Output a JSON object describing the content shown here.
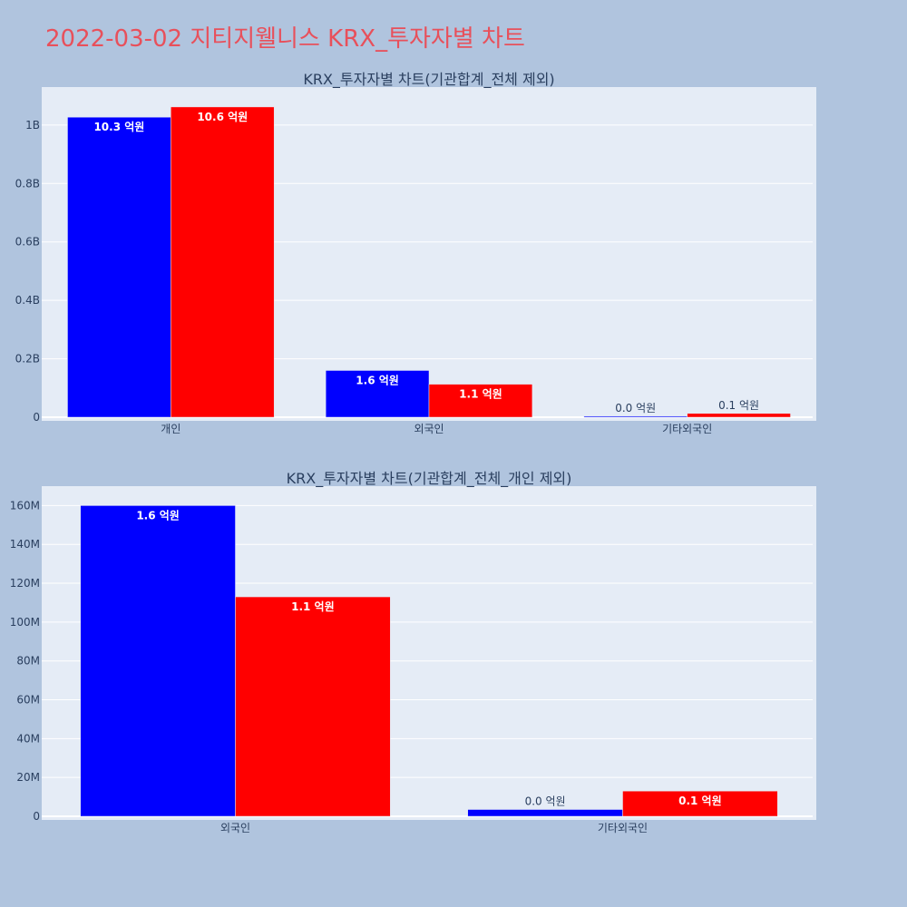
{
  "page_title": "2022-03-02 지티지웰니스 KRX_투자자별 차트",
  "chart_data": [
    {
      "type": "bar",
      "title": "KRX_투자자별 차트(기관합계_전체 제외)",
      "categories": [
        "개인",
        "외국인",
        "기타외국인"
      ],
      "series": [
        {
          "color": "#0000ff",
          "values": [
            1027000000,
            160000000,
            3500000
          ],
          "labels": [
            "10.3 억원",
            "1.6 억원",
            "0.0 억원"
          ]
        },
        {
          "color": "#ff0000",
          "values": [
            1062000000,
            113000000,
            13000000
          ],
          "labels": [
            "10.6 억원",
            "1.1 억원",
            "0.1 억원"
          ]
        }
      ],
      "ylim": [
        0,
        1130000000
      ],
      "yticks": [
        0,
        200000000,
        400000000,
        600000000,
        800000000,
        1000000000
      ],
      "yticklabels": [
        "0",
        "0.2B",
        "0.4B",
        "0.6B",
        "0.8B",
        "1B"
      ]
    },
    {
      "type": "bar",
      "title": "KRX_투자자별 차트(기관합계_전체_개인 제외)",
      "categories": [
        "외국인",
        "기타외국인"
      ],
      "series": [
        {
          "color": "#0000ff",
          "values": [
            160000000,
            3500000
          ],
          "labels": [
            "1.6 억원",
            "0.0 억원"
          ]
        },
        {
          "color": "#ff0000",
          "values": [
            113000000,
            13000000
          ],
          "labels": [
            "1.1 억원",
            "0.1 억원"
          ]
        }
      ],
      "ylim": [
        0,
        170000000
      ],
      "yticks": [
        0,
        20000000,
        40000000,
        60000000,
        80000000,
        100000000,
        120000000,
        140000000,
        160000000
      ],
      "yticklabels": [
        "0",
        "20M",
        "40M",
        "60M",
        "80M",
        "100M",
        "120M",
        "140M",
        "160M"
      ]
    }
  ],
  "colors": {
    "background": "#b0c4de",
    "plot_background": "#e5ecf6",
    "title": "#e8505b",
    "text": "#2a3f5f"
  }
}
